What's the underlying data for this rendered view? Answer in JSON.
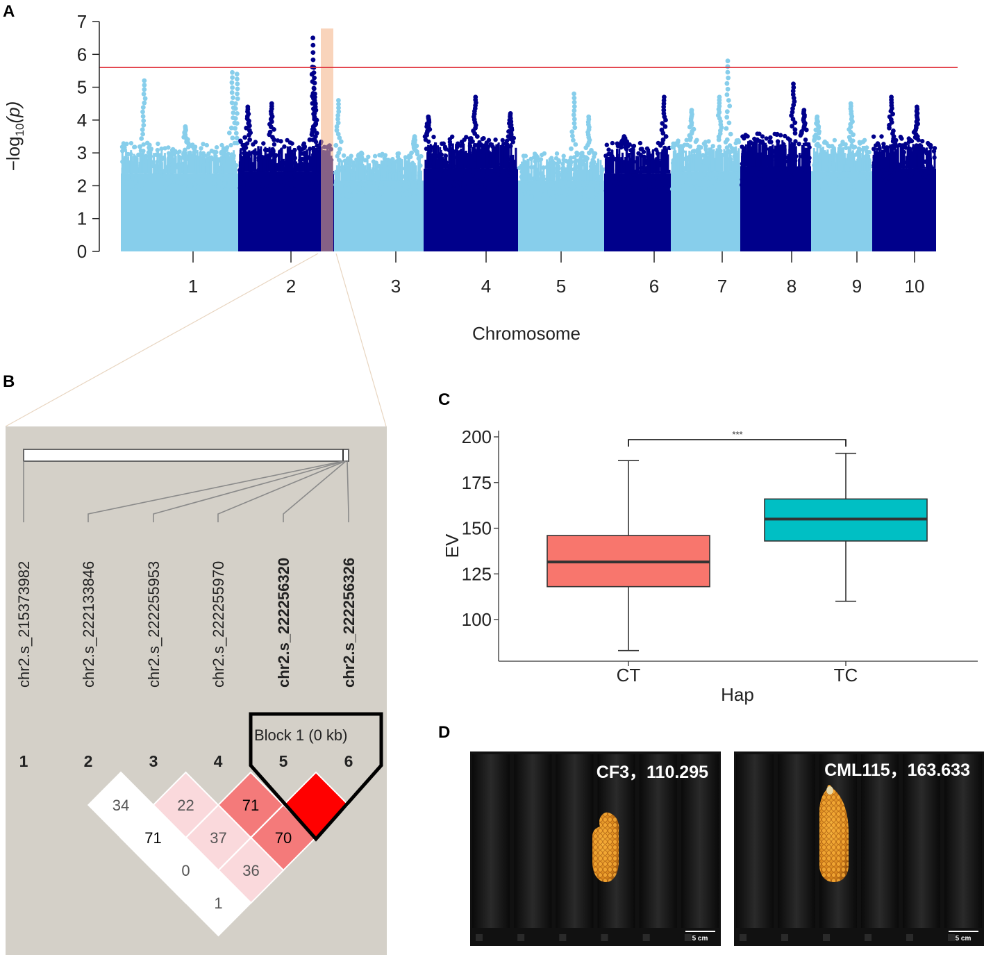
{
  "panel_letters": {
    "a": "A",
    "b": "B",
    "c": "C",
    "d": "D"
  },
  "colors": {
    "light_blue": "#87ceeb",
    "dark_blue": "#00008b",
    "threshold": "#e0303a",
    "highlight": "#f4b083",
    "ct_box": "#f8766d",
    "tc_box": "#00bfc4",
    "ld_bg": "#d4d0c8"
  },
  "chart_data": [
    {
      "type": "scatter",
      "subtype": "manhattan",
      "panel": "A",
      "xlabel": "Chromosome",
      "ylabel": "−log10(p)",
      "ylabel_main": "−log",
      "ylabel_sub": "10",
      "ylabel_tail": "(p)",
      "ylim": [
        0,
        7
      ],
      "yticks": [
        "0",
        "1",
        "2",
        "3",
        "4",
        "5",
        "6",
        "7"
      ],
      "threshold": 5.6,
      "highlighted_chromosome_region": "chr2 ~222 Mb",
      "chromosomes": [
        {
          "label": "1",
          "base_max": 3.3,
          "peaks": [
            [
              0.2,
              5.2
            ],
            [
              0.55,
              3.8
            ],
            [
              0.95,
              5.45
            ],
            [
              0.99,
              5.4
            ]
          ]
        },
        {
          "label": "2",
          "base_max": 3.4,
          "peaks": [
            [
              0.1,
              4.4
            ],
            [
              0.35,
              4.5
            ],
            [
              0.78,
              6.5
            ],
            [
              0.79,
              5.6
            ],
            [
              0.8,
              4.8
            ]
          ]
        },
        {
          "label": "3",
          "base_max": 3.0,
          "peaks": [
            [
              0.05,
              4.6
            ],
            [
              0.3,
              2.6
            ],
            [
              0.9,
              3.5
            ]
          ]
        },
        {
          "label": "4",
          "base_max": 3.5,
          "peaks": [
            [
              0.05,
              4.1
            ],
            [
              0.55,
              4.7
            ],
            [
              0.92,
              4.2
            ]
          ]
        },
        {
          "label": "5",
          "base_max": 3.0,
          "peaks": [
            [
              0.65,
              4.8
            ],
            [
              0.82,
              4.1
            ]
          ]
        },
        {
          "label": "6",
          "base_max": 3.3,
          "peaks": [
            [
              0.3,
              3.5
            ],
            [
              0.9,
              4.7
            ]
          ]
        },
        {
          "label": "7",
          "base_max": 3.4,
          "peaks": [
            [
              0.3,
              4.3
            ],
            [
              0.7,
              4.7
            ],
            [
              0.82,
              5.8
            ]
          ]
        },
        {
          "label": "8",
          "base_max": 3.6,
          "peaks": [
            [
              0.75,
              5.1
            ],
            [
              0.9,
              4.3
            ]
          ]
        },
        {
          "label": "9",
          "base_max": 3.4,
          "peaks": [
            [
              0.1,
              4.1
            ],
            [
              0.65,
              4.5
            ]
          ]
        },
        {
          "label": "10",
          "base_max": 3.5,
          "peaks": [
            [
              0.3,
              4.7
            ],
            [
              0.7,
              4.4
            ]
          ]
        }
      ]
    },
    {
      "type": "heatmap",
      "subtype": "linkage-disequilibrium",
      "panel": "B",
      "snps": [
        {
          "index": "1",
          "name": "chr2.s_215373982",
          "bold": false
        },
        {
          "index": "2",
          "name": "chr2.s_222133846",
          "bold": false
        },
        {
          "index": "3",
          "name": "chr2.s_222255953",
          "bold": false
        },
        {
          "index": "4",
          "name": "chr2.s_222255970",
          "bold": false
        },
        {
          "index": "5",
          "name": "chr2.s_222256320",
          "bold": true
        },
        {
          "index": "6",
          "name": "chr2.s_222256326",
          "bold": true
        }
      ],
      "block_label": "Block 1 (0 kb)",
      "cells": [
        {
          "i": 2,
          "j": 3,
          "value": "34",
          "color": "#ffffff",
          "text_color": "#555555"
        },
        {
          "i": 3,
          "j": 4,
          "value": "22",
          "color": "#fad9dc",
          "text_color": "#555555"
        },
        {
          "i": 4,
          "j": 5,
          "value": "71",
          "color": "#f47a7a",
          "text_color": "#000000"
        },
        {
          "i": 5,
          "j": 6,
          "value": "",
          "color": "#ff0000",
          "text_color": "#000000"
        },
        {
          "i": 2,
          "j": 4,
          "value": "71",
          "color": "#ffffff",
          "text_color": "#000000"
        },
        {
          "i": 3,
          "j": 5,
          "value": "37",
          "color": "#fad9dc",
          "text_color": "#555555"
        },
        {
          "i": 4,
          "j": 6,
          "value": "70",
          "color": "#f47a7a",
          "text_color": "#000000"
        },
        {
          "i": 2,
          "j": 5,
          "value": "0",
          "color": "#ffffff",
          "text_color": "#555555"
        },
        {
          "i": 3,
          "j": 6,
          "value": "36",
          "color": "#fad9dc",
          "text_color": "#555555"
        },
        {
          "i": 2,
          "j": 6,
          "value": "1",
          "color": "#ffffff",
          "text_color": "#555555"
        }
      ]
    },
    {
      "type": "box",
      "panel": "C",
      "xlabel": "Hap",
      "ylabel": "EV",
      "ylim": [
        80,
        202
      ],
      "yticks": [
        "100",
        "125",
        "150",
        "175",
        "200"
      ],
      "significance": "***",
      "categories": [
        "CT",
        "TC"
      ],
      "boxes": [
        {
          "name": "CT",
          "min": 83,
          "q1": 118,
          "median": 131.5,
          "q3": 146,
          "max": 187,
          "color": "#f8766d"
        },
        {
          "name": "TC",
          "min": 110,
          "q1": 143,
          "median": 155,
          "q3": 166,
          "max": 191,
          "color": "#00bfc4"
        }
      ]
    }
  ],
  "photos": [
    {
      "label": "CF3，110.295",
      "scale": "5 cm"
    },
    {
      "label": "CML115，163.633",
      "scale": "5 cm"
    }
  ]
}
